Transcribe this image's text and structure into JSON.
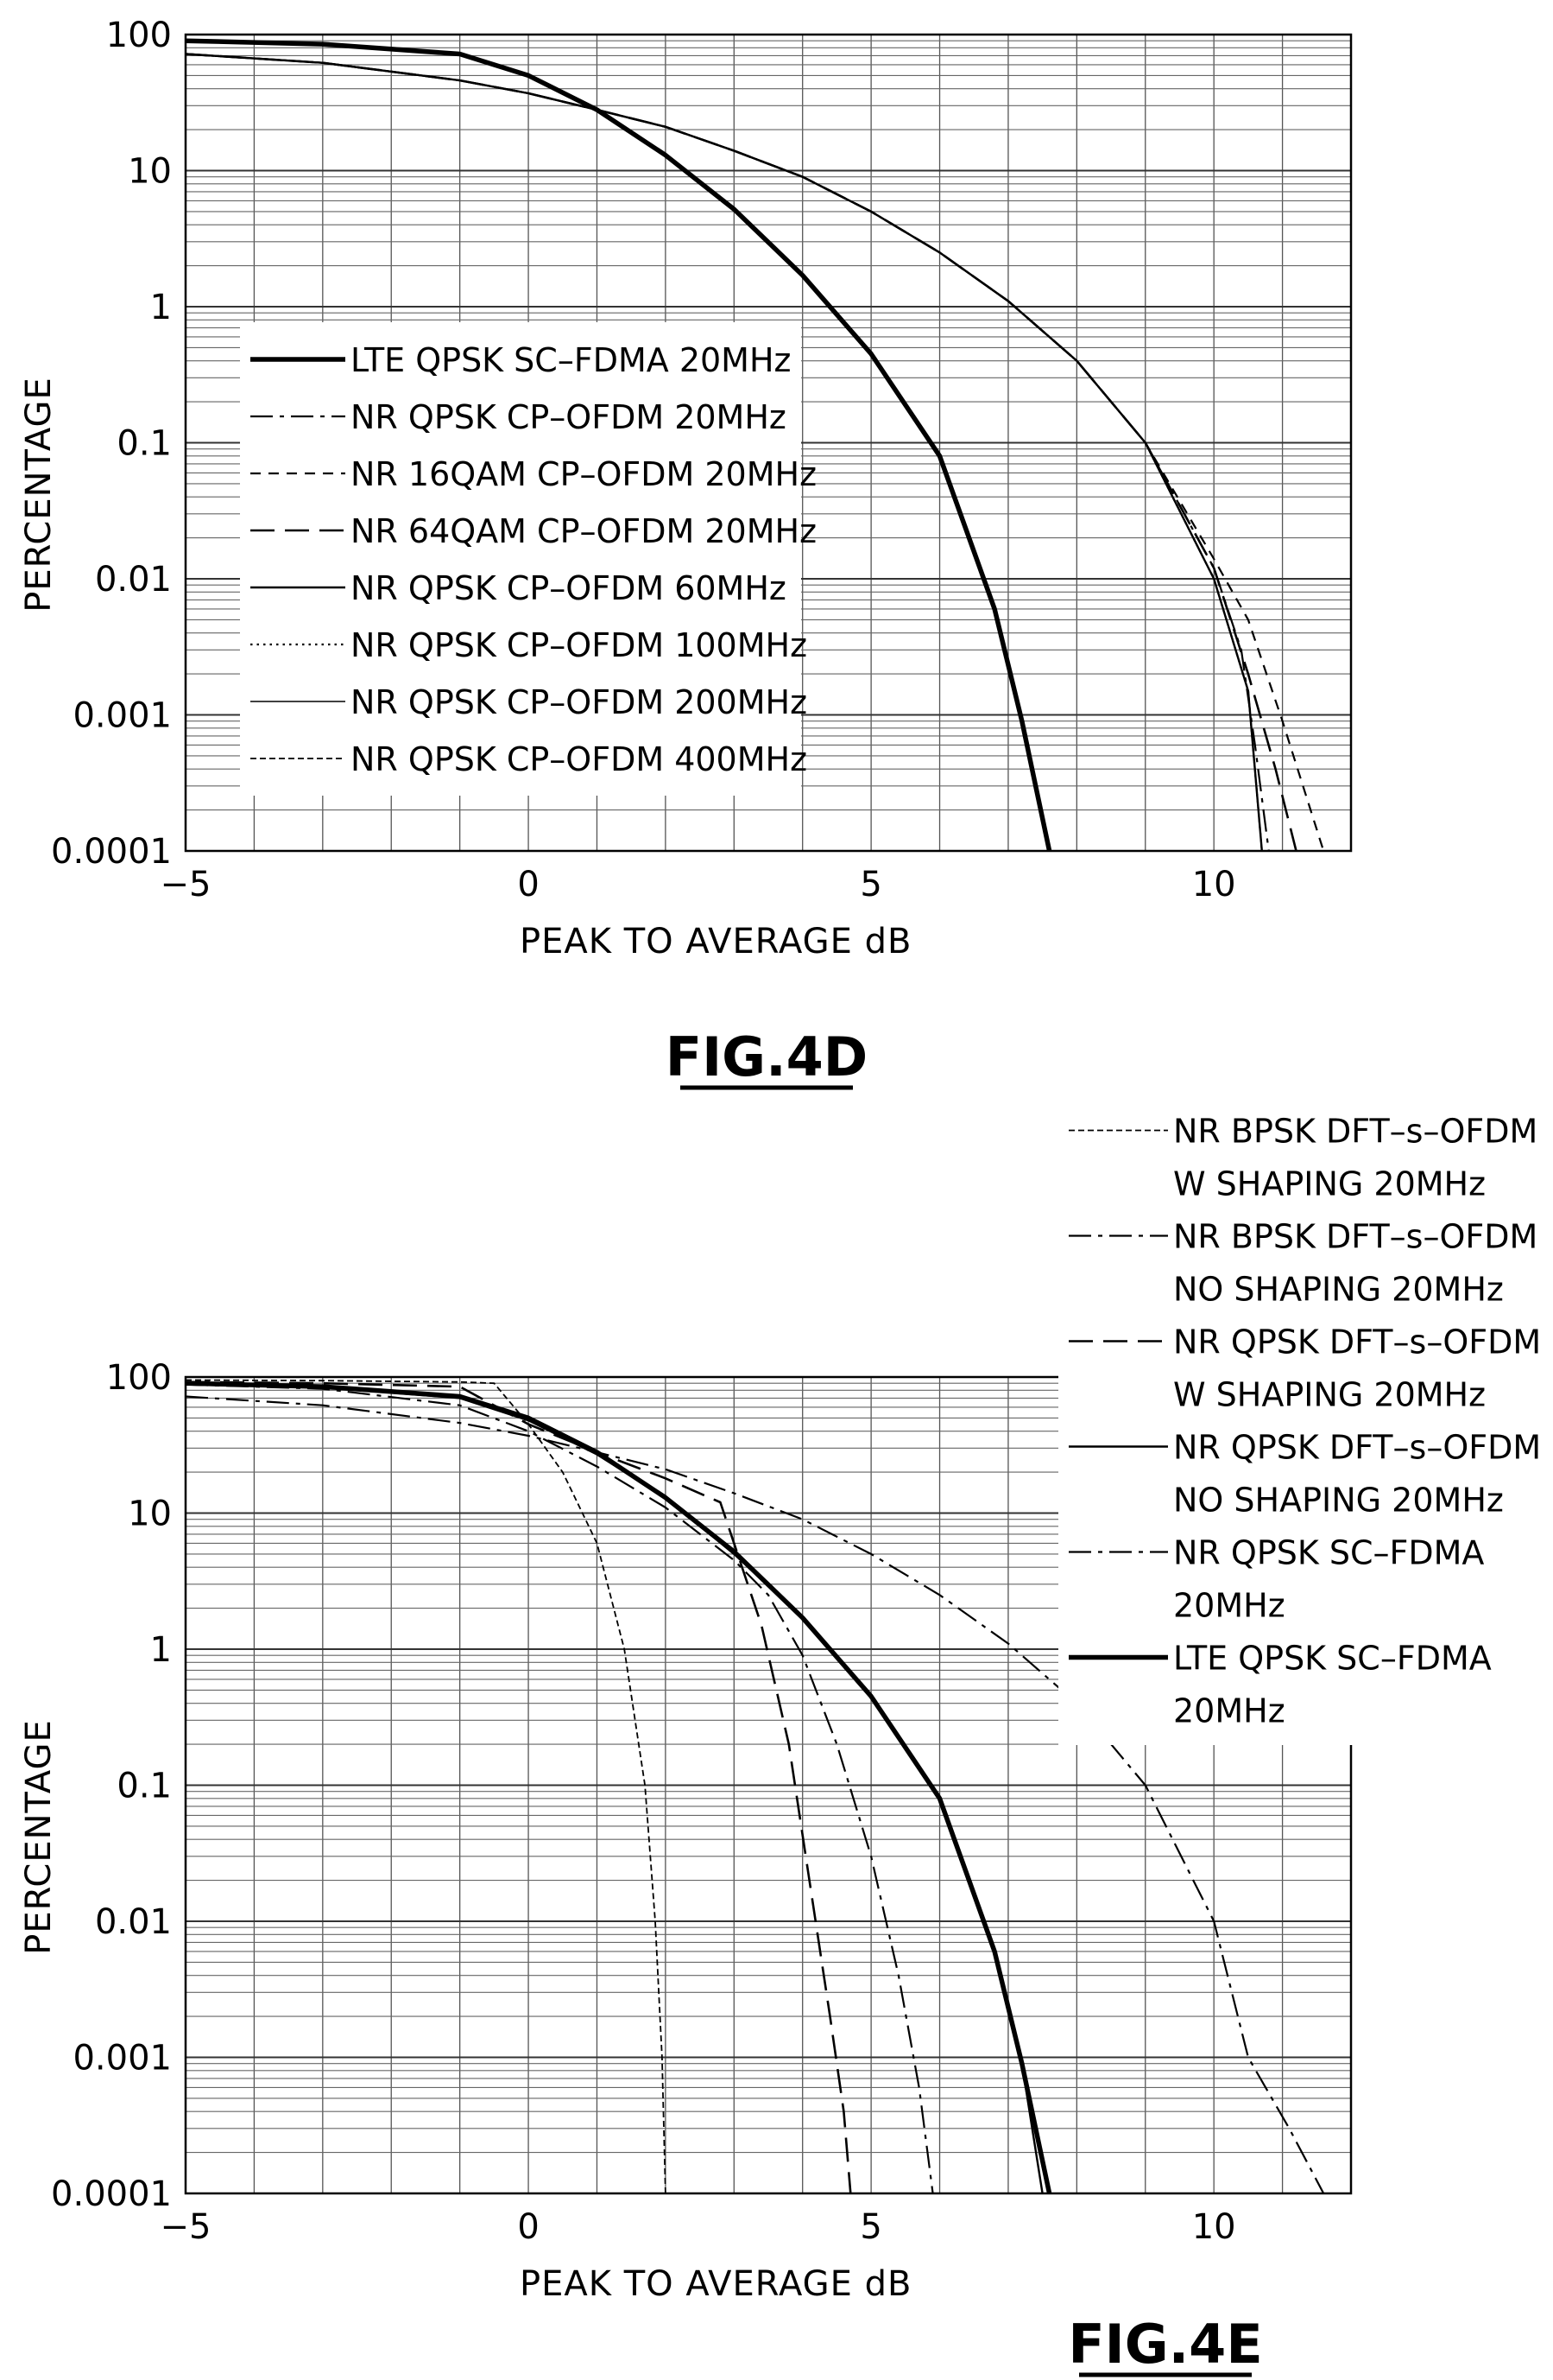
{
  "chart_data": [
    {
      "type": "line",
      "figure_label": "FIG.4D",
      "xlabel": "PEAK TO AVERAGE dB",
      "ylabel": "PERCENTAGE",
      "xlim": [
        -5,
        12
      ],
      "ylim": [
        0.0001,
        100
      ],
      "y_scale": "log",
      "x_ticks": [
        "-5",
        "0",
        "5",
        "10"
      ],
      "y_ticks": [
        "100",
        "10",
        "1",
        "0.1",
        "0.01",
        "0.001",
        "0.0001"
      ],
      "grid": true,
      "legend_position": "center-left",
      "series": [
        {
          "name": "LTE QPSK SC-FDMA 20MHz",
          "style": "thick-solid",
          "x": [
            -5,
            -3,
            -1,
            0,
            1,
            2,
            3,
            4,
            5,
            6,
            6.8,
            7.2,
            7.6
          ],
          "y": [
            90,
            85,
            72,
            50,
            28,
            13,
            5.2,
            1.7,
            0.45,
            0.08,
            0.006,
            0.0009,
            0.0001
          ]
        },
        {
          "name": "NR QPSK CP-OFDM 20MHz",
          "style": "dash-dot",
          "x": [
            -5,
            -3,
            -1,
            0,
            1,
            2,
            3,
            4,
            5,
            6,
            7,
            8,
            9,
            10,
            10.4,
            10.6,
            10.8
          ],
          "y": [
            72,
            62,
            46,
            37,
            28,
            21,
            14,
            9,
            5,
            2.5,
            1.1,
            0.4,
            0.1,
            0.012,
            0.003,
            0.0006,
            0.0001
          ]
        },
        {
          "name": "NR 16QAM CP-OFDM 20MHz",
          "style": "short-dash",
          "x": [
            -5,
            -3,
            -1,
            0,
            1,
            2,
            3,
            4,
            5,
            6,
            7,
            8,
            9,
            10,
            10.5,
            11,
            11.6
          ],
          "y": [
            72,
            62,
            46,
            37,
            28,
            21,
            14,
            9,
            5,
            2.5,
            1.1,
            0.4,
            0.1,
            0.014,
            0.005,
            0.0009,
            0.0001
          ]
        },
        {
          "name": "NR 64QAM CP-OFDM 20MHz",
          "style": "long-dash",
          "x": [
            -5,
            -3,
            -1,
            0,
            1,
            2,
            3,
            4,
            5,
            6,
            7,
            8,
            9,
            10,
            10.5,
            10.9,
            11.2
          ],
          "y": [
            72,
            62,
            46,
            37,
            28,
            21,
            14,
            9,
            5,
            2.5,
            1.1,
            0.4,
            0.1,
            0.012,
            0.002,
            0.0004,
            0.0001
          ]
        },
        {
          "name": "NR QPSK CP-OFDM 60MHz",
          "style": "thin-solid",
          "x": [
            -5,
            -3,
            -1,
            0,
            1,
            2,
            3,
            4,
            5,
            6,
            7,
            8,
            9,
            10,
            10.5,
            10.7
          ],
          "y": [
            72,
            62,
            46,
            37,
            28,
            21,
            14,
            9,
            5,
            2.5,
            1.1,
            0.4,
            0.1,
            0.01,
            0.0015,
            0.0001
          ]
        },
        {
          "name": "NR QPSK CP-OFDM 100MHz",
          "style": "dotted",
          "x": [
            -5,
            -3,
            -1,
            0,
            1,
            2,
            3,
            4,
            5,
            6,
            7,
            8,
            9,
            10,
            10.5,
            10.7
          ],
          "y": [
            72,
            62,
            46,
            37,
            28,
            21,
            14,
            9,
            5,
            2.5,
            1.1,
            0.4,
            0.1,
            0.01,
            0.0015,
            0.0001
          ]
        },
        {
          "name": "NR QPSK CP-OFDM 200MHz",
          "style": "hairline",
          "x": [
            -5,
            -3,
            -1,
            0,
            1,
            2,
            3,
            4,
            5,
            6,
            7,
            8,
            9,
            10,
            10.5,
            10.7
          ],
          "y": [
            72,
            62,
            46,
            37,
            28,
            21,
            14,
            9,
            5,
            2.5,
            1.1,
            0.4,
            0.1,
            0.01,
            0.0015,
            0.0001
          ]
        },
        {
          "name": "NR QPSK CP-OFDM 400MHz",
          "style": "fine-dash",
          "x": [
            -5,
            -3,
            -1,
            0,
            1,
            2,
            3,
            4,
            5,
            6,
            7,
            8,
            9,
            10,
            10.5,
            10.7
          ],
          "y": [
            72,
            62,
            46,
            37,
            28,
            21,
            14,
            9,
            5,
            2.5,
            1.1,
            0.4,
            0.1,
            0.01,
            0.0015,
            0.0001
          ]
        }
      ]
    },
    {
      "type": "line",
      "figure_label": "FIG.4E",
      "xlabel": "PEAK TO AVERAGE dB",
      "ylabel": "PERCENTAGE",
      "xlim": [
        -5,
        12
      ],
      "ylim": [
        0.0001,
        100
      ],
      "y_scale": "log",
      "x_ticks": [
        "-5",
        "0",
        "5",
        "10"
      ],
      "y_ticks": [
        "100",
        "10",
        "1",
        "0.1",
        "0.01",
        "0.001",
        "0.0001"
      ],
      "grid": true,
      "legend_position": "outside-top-right",
      "series": [
        {
          "name": "NR BPSK DFT-s-OFDM W SHAPING 20MHz",
          "style": "fine-dash",
          "x": [
            -5,
            -3,
            -1,
            -0.5,
            0,
            0.5,
            1,
            1.4,
            1.7,
            1.85,
            1.95,
            2.0
          ],
          "y": [
            95,
            94,
            92,
            90,
            45,
            20,
            6,
            1,
            0.1,
            0.01,
            0.001,
            0.0001
          ]
        },
        {
          "name": "NR BPSK DFT-s-OFDM NO SHAPING 20MHz",
          "style": "dash-dot",
          "x": [
            -5,
            -3,
            -1,
            0,
            1,
            2,
            3,
            3.5,
            4,
            4.5,
            5,
            5.4,
            5.7,
            5.9
          ],
          "y": [
            88,
            82,
            62,
            40,
            22,
            11,
            4.5,
            2.5,
            0.9,
            0.2,
            0.03,
            0.004,
            0.0006,
            0.0001
          ]
        },
        {
          "name": "NR QPSK DFT-s-OFDM W SHAPING 20MHz",
          "style": "long-dash",
          "x": [
            -5,
            -3,
            -1,
            0,
            1,
            2,
            2.8,
            3.0,
            3.4,
            3.8,
            4.1,
            4.4,
            4.6,
            4.7
          ],
          "y": [
            92,
            90,
            85,
            45,
            28,
            18,
            12,
            6,
            1.5,
            0.2,
            0.02,
            0.002,
            0.0004,
            0.0001
          ]
        },
        {
          "name": "NR QPSK DFT-s-OFDM NO SHAPING 20MHz",
          "style": "thin-solid",
          "x": [
            -5,
            -3,
            -1,
            0,
            1,
            2,
            3,
            4,
            5,
            6,
            6.8,
            7.2,
            7.5
          ],
          "y": [
            88,
            84,
            70,
            48,
            27,
            13,
            5,
            1.7,
            0.45,
            0.08,
            0.006,
            0.0009,
            0.0001
          ]
        },
        {
          "name": "NR QPSK SC-FDMA 20MHz",
          "style": "dash-dot",
          "x": [
            -5,
            -3,
            -1,
            0,
            1,
            2,
            3,
            4,
            5,
            6,
            7,
            8,
            9,
            10,
            10.5,
            11.1,
            11.6
          ],
          "y": [
            72,
            62,
            46,
            37,
            28,
            21,
            14,
            9,
            5,
            2.5,
            1.1,
            0.4,
            0.1,
            0.01,
            0.001,
            0.0003,
            0.0001
          ]
        },
        {
          "name": "LTE QPSK SC-FDMA 20MHz",
          "style": "thick-solid",
          "x": [
            -5,
            -3,
            -1,
            0,
            1,
            2,
            3,
            4,
            5,
            6,
            6.8,
            7.2,
            7.6
          ],
          "y": [
            90,
            85,
            72,
            50,
            28,
            13,
            5.2,
            1.7,
            0.45,
            0.08,
            0.006,
            0.0009,
            0.0001
          ]
        }
      ]
    }
  ]
}
